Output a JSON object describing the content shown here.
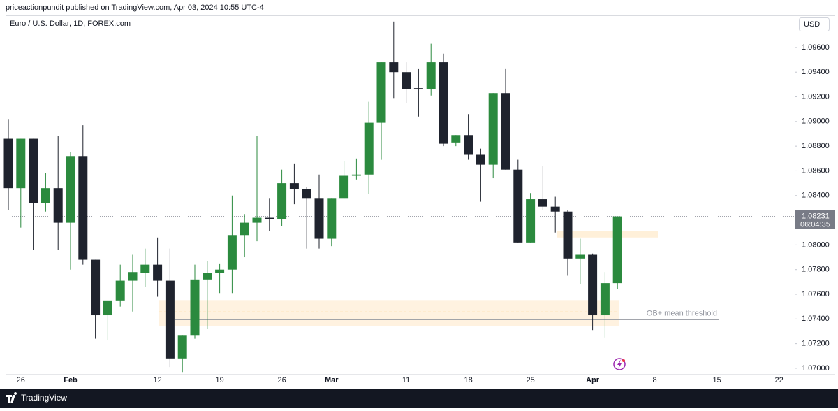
{
  "header": {
    "text": "priceactionpundit published on TradingView.com, Apr 03, 2024 10:55 UTC-4"
  },
  "footer": {
    "brand": "TradingView"
  },
  "chart_data": {
    "type": "candlestick",
    "title": "Euro / U.S. Dollar, 1D, FOREX.com",
    "currency": "USD",
    "up_color": "#2b8a3e",
    "down_color": "#1f232e",
    "categories": [
      null,
      "26",
      null,
      null,
      null,
      "Feb",
      null,
      null,
      null,
      null,
      null,
      null,
      "12",
      null,
      null,
      null,
      null,
      "19",
      null,
      null,
      null,
      null,
      "26",
      null,
      null,
      null,
      "Mar",
      null,
      null,
      null,
      null,
      null,
      "11",
      null,
      null,
      null,
      null,
      "18",
      null,
      null,
      null,
      null,
      "25",
      null,
      null,
      null,
      null,
      "Apr",
      null,
      null,
      null,
      null,
      "8",
      null,
      null,
      null,
      null,
      "15",
      null,
      null,
      null,
      null,
      "22"
    ],
    "open": [
      1.0886,
      1.0846,
      1.0886,
      1.0834,
      1.0846,
      1.0818,
      1.0872,
      1.0788,
      1.0743,
      1.0755,
      1.0771,
      1.0777,
      1.0784,
      1.0771,
      1.0708,
      1.0727,
      1.0772,
      1.0777,
      1.078,
      1.0808,
      1.0818,
      1.0822,
      1.0821,
      1.085,
      1.0845,
      1.0838,
      1.0805,
      1.0838,
      1.0856,
      1.0857,
      1.0899,
      1.0948,
      1.094,
      1.0927,
      1.0926,
      1.0948,
      1.0883,
      1.0889,
      1.0873,
      1.0865,
      1.0923,
      1.0861,
      1.0802,
      1.0837,
      1.0831,
      1.0827,
      1.0789,
      1.0792,
      1.0743,
      1.0769,
      null,
      null,
      null,
      null,
      null,
      null,
      null,
      null,
      null,
      null,
      null,
      null,
      null
    ],
    "high": [
      1.0902,
      1.0886,
      1.0886,
      1.0858,
      1.0888,
      1.0875,
      1.0897,
      1.0788,
      1.0755,
      1.0784,
      1.0792,
      1.0797,
      1.0806,
      1.0797,
      1.0727,
      1.0784,
      1.0787,
      1.0785,
      1.084,
      1.0825,
      1.0888,
      1.0838,
      1.0861,
      1.0866,
      1.0847,
      1.0857,
      1.0838,
      1.0868,
      1.087,
      1.0916,
      1.0948,
      1.0981,
      1.0948,
      1.0943,
      1.0963,
      1.0955,
      1.0889,
      1.0906,
      1.0878,
      1.0923,
      1.0943,
      1.0869,
      1.0842,
      1.0864,
      1.0839,
      1.0828,
      1.0805,
      1.0793,
      1.0778,
      1.0823,
      null,
      null,
      null,
      null,
      null,
      null,
      null,
      null,
      null,
      null,
      null,
      null,
      null
    ],
    "low": [
      1.0828,
      1.0814,
      1.0796,
      1.0827,
      1.0796,
      1.078,
      1.0784,
      1.0724,
      1.0723,
      1.075,
      1.0746,
      1.0766,
      1.0758,
      1.0701,
      1.0697,
      1.0724,
      1.0732,
      1.0761,
      1.0761,
      1.079,
      1.0803,
      1.0811,
      1.0815,
      1.0833,
      1.0797,
      1.0797,
      1.0799,
      1.0838,
      1.0853,
      1.0841,
      1.0869,
      1.0919,
      1.0915,
      1.0904,
      1.0921,
      1.088,
      1.088,
      1.0869,
      1.0835,
      1.0854,
      1.0861,
      1.0802,
      1.0802,
      1.0828,
      1.081,
      1.0775,
      1.0768,
      1.0731,
      1.0725,
      1.0764,
      null,
      null,
      null,
      null,
      null,
      null,
      null,
      null,
      null,
      null,
      null,
      null,
      null
    ],
    "close": [
      1.0846,
      1.0886,
      1.0834,
      1.0846,
      1.0818,
      1.0872,
      1.0788,
      1.0743,
      1.0755,
      1.0771,
      1.0778,
      1.0784,
      1.0771,
      1.0708,
      1.0727,
      1.0772,
      1.0777,
      1.078,
      1.0808,
      1.0818,
      1.0822,
      1.0821,
      1.085,
      1.0845,
      1.0838,
      1.0805,
      1.0838,
      1.0856,
      1.0857,
      1.0899,
      1.0948,
      1.094,
      1.0926,
      1.0926,
      1.0948,
      1.0882,
      1.0889,
      1.0873,
      1.0865,
      1.0923,
      1.0861,
      1.0802,
      1.0837,
      1.0831,
      1.0827,
      1.0789,
      1.0792,
      1.0743,
      1.0769,
      1.08231,
      null,
      null,
      null,
      null,
      null,
      null,
      null,
      null,
      null,
      null,
      null,
      null,
      null
    ],
    "ylim": [
      1.0696,
      1.0986
    ],
    "yticks": [
      {
        "value": 1.07,
        "label": "1.07000"
      },
      {
        "value": 1.072,
        "label": "1.07200"
      },
      {
        "value": 1.074,
        "label": "1.07400"
      },
      {
        "value": 1.076,
        "label": "1.07600"
      },
      {
        "value": 1.078,
        "label": "1.07800"
      },
      {
        "value": 1.08,
        "label": "1.08000"
      },
      {
        "value": 1.084,
        "label": "1.08400"
      },
      {
        "value": 1.086,
        "label": "1.08600"
      },
      {
        "value": 1.088,
        "label": "1.08800"
      },
      {
        "value": 1.09,
        "label": "1.09000"
      },
      {
        "value": 1.092,
        "label": "1.09200"
      },
      {
        "value": 1.094,
        "label": "1.09400"
      },
      {
        "value": 1.096,
        "label": "1.09600"
      }
    ],
    "last_price": {
      "value": 1.08231,
      "countdown": "06:04:35"
    },
    "zones": [
      {
        "high": 1.07553,
        "low": 1.07343,
        "mid": 1.07456
      },
      {
        "high": 1.0811,
        "low": 1.0806
      }
    ],
    "threshold": {
      "value": 1.07394,
      "label": "OB+ mean threshold"
    }
  }
}
